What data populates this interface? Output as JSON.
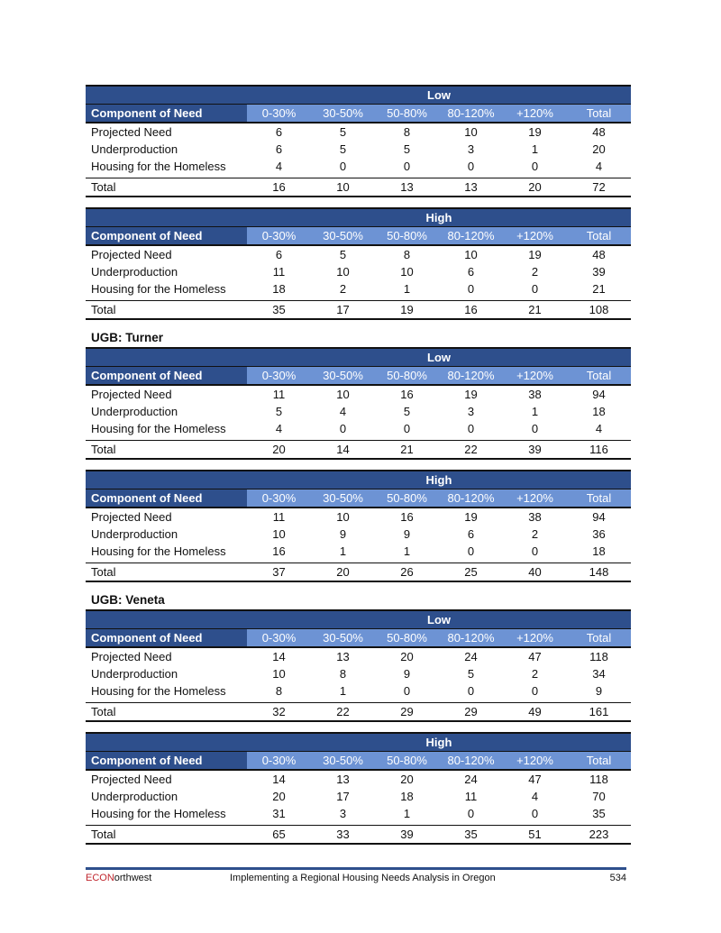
{
  "columns": [
    "Component of Need",
    "0-30%",
    "30-50%",
    "50-80%",
    "80-120%",
    "+120%",
    "Total"
  ],
  "sections": [
    {
      "title": "",
      "tables": [
        {
          "scenario": "Low",
          "rows": [
            [
              "Projected Need",
              "6",
              "5",
              "8",
              "10",
              "19",
              "48"
            ],
            [
              "Underproduction",
              "6",
              "5",
              "5",
              "3",
              "1",
              "20"
            ],
            [
              "Housing for the Homeless",
              "4",
              "0",
              "0",
              "0",
              "0",
              "4"
            ]
          ],
          "total": [
            "Total",
            "16",
            "10",
            "13",
            "13",
            "20",
            "72"
          ]
        },
        {
          "scenario": "High",
          "rows": [
            [
              "Projected Need",
              "6",
              "5",
              "8",
              "10",
              "19",
              "48"
            ],
            [
              "Underproduction",
              "11",
              "10",
              "10",
              "6",
              "2",
              "39"
            ],
            [
              "Housing for the Homeless",
              "18",
              "2",
              "1",
              "0",
              "0",
              "21"
            ]
          ],
          "total": [
            "Total",
            "35",
            "17",
            "19",
            "16",
            "21",
            "108"
          ]
        }
      ]
    },
    {
      "title": "UGB: Turner",
      "tables": [
        {
          "scenario": "Low",
          "rows": [
            [
              "Projected Need",
              "11",
              "10",
              "16",
              "19",
              "38",
              "94"
            ],
            [
              "Underproduction",
              "5",
              "4",
              "5",
              "3",
              "1",
              "18"
            ],
            [
              "Housing for the Homeless",
              "4",
              "0",
              "0",
              "0",
              "0",
              "4"
            ]
          ],
          "total": [
            "Total",
            "20",
            "14",
            "21",
            "22",
            "39",
            "116"
          ]
        },
        {
          "scenario": "High",
          "rows": [
            [
              "Projected Need",
              "11",
              "10",
              "16",
              "19",
              "38",
              "94"
            ],
            [
              "Underproduction",
              "10",
              "9",
              "9",
              "6",
              "2",
              "36"
            ],
            [
              "Housing for the Homeless",
              "16",
              "1",
              "1",
              "0",
              "0",
              "18"
            ]
          ],
          "total": [
            "Total",
            "37",
            "20",
            "26",
            "25",
            "40",
            "148"
          ]
        }
      ]
    },
    {
      "title": "UGB: Veneta",
      "tables": [
        {
          "scenario": "Low",
          "rows": [
            [
              "Projected Need",
              "14",
              "13",
              "20",
              "24",
              "47",
              "118"
            ],
            [
              "Underproduction",
              "10",
              "8",
              "9",
              "5",
              "2",
              "34"
            ],
            [
              "Housing for the Homeless",
              "8",
              "1",
              "0",
              "0",
              "0",
              "9"
            ]
          ],
          "total": [
            "Total",
            "32",
            "22",
            "29",
            "29",
            "49",
            "161"
          ]
        },
        {
          "scenario": "High",
          "rows": [
            [
              "Projected Need",
              "14",
              "13",
              "20",
              "24",
              "47",
              "118"
            ],
            [
              "Underproduction",
              "20",
              "17",
              "18",
              "11",
              "4",
              "70"
            ],
            [
              "Housing for the Homeless",
              "31",
              "3",
              "1",
              "0",
              "0",
              "35"
            ]
          ],
          "total": [
            "Total",
            "65",
            "33",
            "39",
            "35",
            "51",
            "223"
          ]
        }
      ]
    }
  ],
  "footer": {
    "brand_red": "ECON",
    "brand_rest": "orthwest",
    "title": "Implementing a Regional Housing Needs Analysis in Oregon",
    "page": "534"
  },
  "colors": {
    "dark_blue": "#2e4f8c",
    "light_blue": "#6d93d4",
    "brand_red": "#c0262d"
  }
}
